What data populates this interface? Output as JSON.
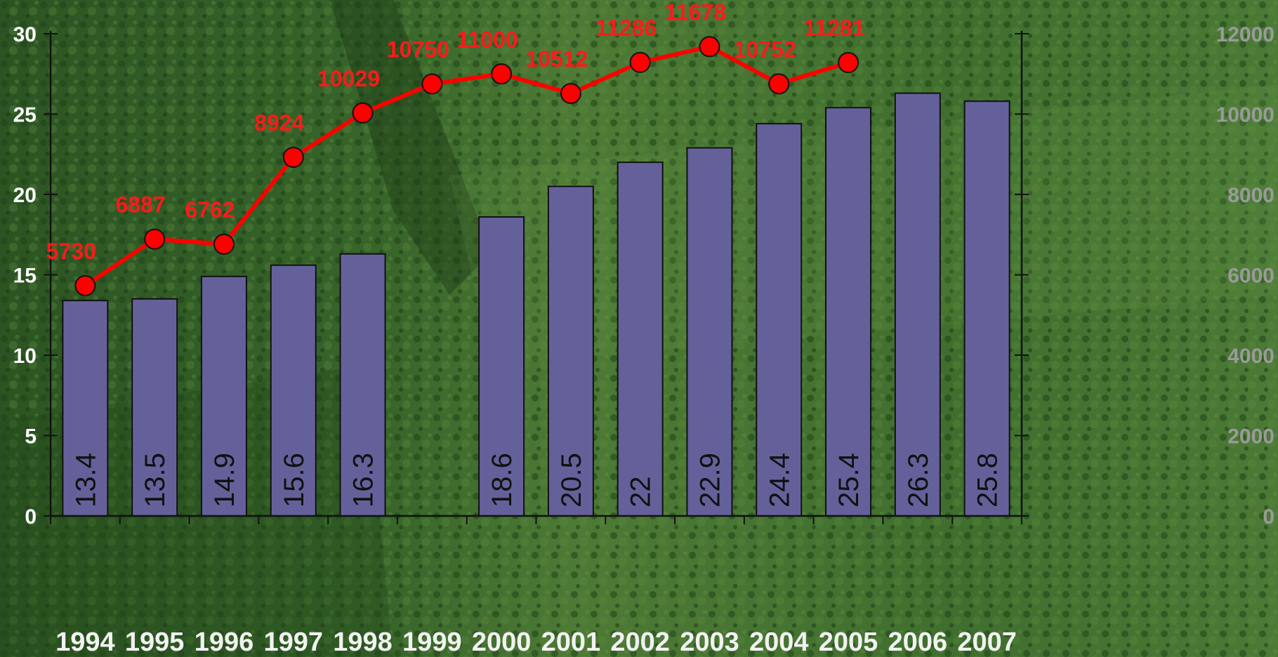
{
  "chart_data": {
    "type": "bar",
    "categories": [
      "1994",
      "1995",
      "1996",
      "1997",
      "1998",
      "1999",
      "2000",
      "2001",
      "2002",
      "2003",
      "2004",
      "2005",
      "2006",
      "2007"
    ],
    "series": [
      {
        "type": "bar",
        "axis": "left",
        "color": "#64619a",
        "values": [
          13.4,
          13.5,
          14.9,
          15.6,
          16.3,
          null,
          18.6,
          20.5,
          22,
          22.9,
          24.4,
          25.4,
          26.3,
          25.8
        ],
        "labels": [
          "13.4",
          "13.5",
          "14.9",
          "15.6",
          "16.3",
          "",
          "18.6",
          "20.5",
          "22",
          "22.9",
          "24.4",
          "25.4",
          "26.3",
          "25.8"
        ]
      },
      {
        "type": "line",
        "axis": "right",
        "color": "#ff0000",
        "values": [
          5730,
          6887,
          6762,
          8924,
          10029,
          10750,
          11000,
          10512,
          11286,
          11678,
          10752,
          11281,
          null,
          null
        ],
        "labels": [
          "5730",
          "6887",
          "6762",
          "8924",
          "10029",
          "10750",
          "11000",
          "10512",
          "11286",
          "11678",
          "10752",
          "11281",
          "",
          ""
        ]
      }
    ],
    "y_left": {
      "range": [
        0,
        30
      ],
      "ticks": [
        "0",
        "5",
        "10",
        "15",
        "20",
        "25",
        "30"
      ]
    },
    "y_right": {
      "range": [
        0,
        12000
      ],
      "ticks": [
        "0",
        "2000",
        "4000",
        "6000",
        "8000",
        "10000",
        "12000"
      ]
    },
    "title": "",
    "xlabel": "",
    "ylabel": "",
    "grid": false,
    "legend": "none",
    "colors": {
      "background": "#2f5a26",
      "axis": "#111111",
      "bar": "#64619a",
      "line": "#ff0000"
    }
  }
}
